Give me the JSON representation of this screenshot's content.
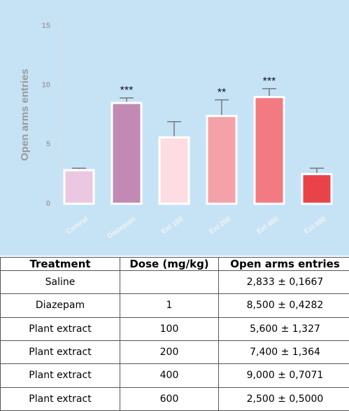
{
  "chart_data": {
    "type": "bar",
    "ylabel": "Open arms entries",
    "categories": [
      "Control",
      "Diazepam",
      "Ext 100",
      "Ext 200",
      "Ext 400",
      "Ext 600"
    ],
    "values": [
      2.833,
      8.5,
      5.6,
      7.4,
      9.0,
      2.5
    ],
    "errors": [
      0.1667,
      0.4282,
      1.327,
      1.364,
      0.7071,
      0.5
    ],
    "annotations": [
      null,
      "***",
      null,
      "**",
      "***",
      null
    ],
    "colors": [
      "#eac8e2",
      "#c189b4",
      "#fddde1",
      "#f5a1a8",
      "#f27b82",
      "#e9434a"
    ],
    "ylim": [
      0,
      15
    ],
    "yticks": [
      0,
      5,
      10,
      15
    ]
  },
  "table": {
    "header": [
      "Treatment",
      "Dose (mg/kg)",
      "Open arms entries"
    ],
    "rows": [
      [
        "Saline",
        "",
        "2,833 ± 0,1667"
      ],
      [
        "Diazepam",
        "1",
        "8,500 ± 0,4282"
      ],
      [
        "Plant extract",
        "100",
        "5,600 ± 1,327"
      ],
      [
        "Plant extract",
        "200",
        "7,400 ± 1,364"
      ],
      [
        "Plant extract",
        "400",
        "9,000 ± 0,7071"
      ],
      [
        "Plant extract",
        "600",
        "2,500 ± 0,5000"
      ]
    ]
  }
}
